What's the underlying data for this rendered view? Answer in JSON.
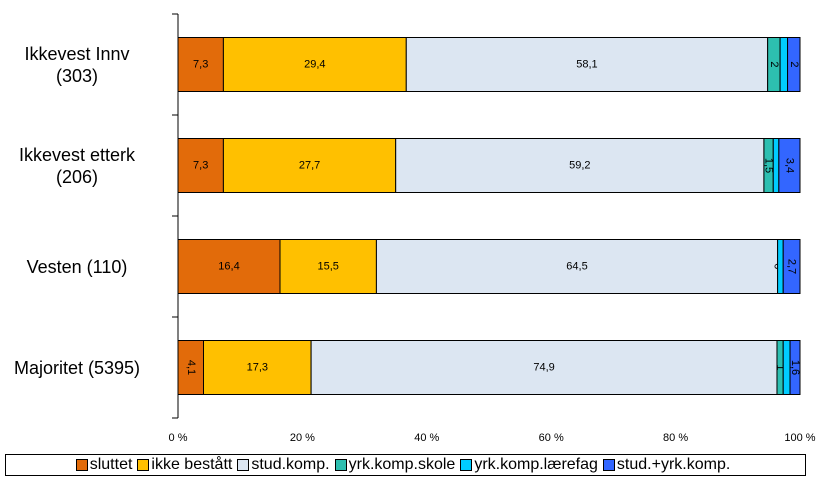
{
  "chart_data": {
    "type": "stacked-barh",
    "categories": [
      "Ikkevest Innv\n(303)",
      "Ikkevest etterk\n(206)",
      "Vesten (110)",
      "Majoritet (5395)"
    ],
    "series": [
      {
        "name": "sluttet",
        "color": "#e26b0a",
        "values": [
          7.3,
          7.3,
          16.4,
          4.1
        ],
        "value_labels": [
          "7,3",
          "7,3",
          "16,4",
          "4,1"
        ]
      },
      {
        "name": "ikke bestått",
        "color": "#ffc000",
        "values": [
          29.4,
          27.7,
          15.5,
          17.3
        ],
        "value_labels": [
          "29,4",
          "27,7",
          "15,5",
          "17,3"
        ]
      },
      {
        "name": "stud.komp.",
        "color": "#dce6f2",
        "values": [
          58.1,
          59.2,
          64.5,
          74.9
        ],
        "value_labels": [
          "58,1",
          "59,2",
          "64,5",
          "74,9"
        ]
      },
      {
        "name": "yrk.komp.skole",
        "color": "#2dbfb0",
        "values": [
          2,
          1.5,
          0,
          1
        ],
        "value_labels": [
          "2",
          "1,5",
          "0",
          "1"
        ]
      },
      {
        "name": "yrk.komp.lærefag",
        "color": "#00ccff",
        "values": [
          1.2,
          0.9,
          0.9,
          1.1
        ]
      },
      {
        "name": "stud.+yrk.komp.",
        "color": "#3366ff",
        "values": [
          2,
          3.4,
          2.7,
          1.6
        ],
        "value_labels": [
          "2",
          "3,4",
          "2,7",
          "1,6"
        ]
      }
    ],
    "xlim": [
      0,
      100
    ],
    "xticks": [
      {
        "value": 0,
        "label": "0 %"
      },
      {
        "value": 20,
        "label": "20 %"
      },
      {
        "value": 40,
        "label": "40 %"
      },
      {
        "value": 60,
        "label": "60 %"
      },
      {
        "value": 80,
        "label": "80 %"
      },
      {
        "value": 100,
        "label": "100 %"
      }
    ],
    "legend": "bottom"
  }
}
